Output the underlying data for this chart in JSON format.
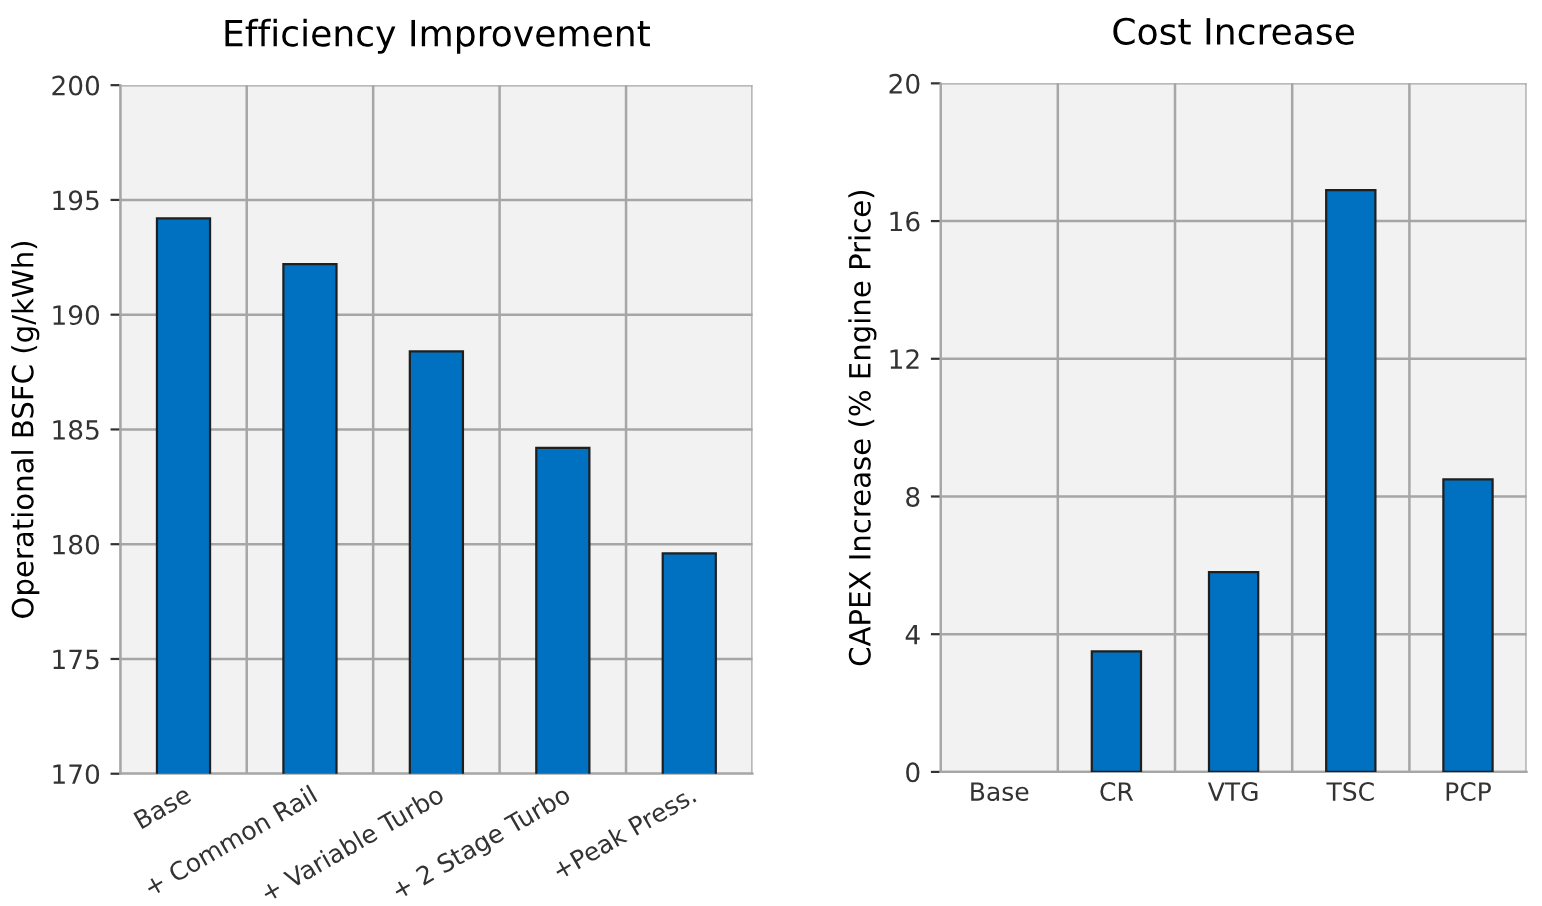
{
  "chart_data": [
    {
      "type": "bar",
      "title": "Efficiency Improvement",
      "ylabel": "Operational BSFC (g/kWh)",
      "categories": [
        "Base",
        "+ Common Rail",
        "+ Variable Turbo",
        "+ 2 Stage Turbo",
        "+Peak Press."
      ],
      "values": [
        194.2,
        192.2,
        188.4,
        184.2,
        179.6
      ],
      "color": "#0070c0",
      "ylim": [
        170,
        200
      ],
      "yticks": [
        170,
        175,
        180,
        185,
        190,
        195,
        200
      ],
      "grid": true,
      "legend": false
    },
    {
      "type": "bar",
      "title": "Cost Increase",
      "ylabel": "CAPEX Increase (% Engine Price)",
      "categories": [
        "Base",
        "CR",
        "VTG",
        "TSC",
        "PCP"
      ],
      "values": [
        0,
        3.5,
        5.8,
        16.9,
        8.5
      ],
      "color": "#0070c0",
      "ylim": [
        0,
        20
      ],
      "yticks": [
        0,
        4,
        8,
        12,
        16,
        20
      ],
      "grid": true,
      "legend": false
    }
  ]
}
